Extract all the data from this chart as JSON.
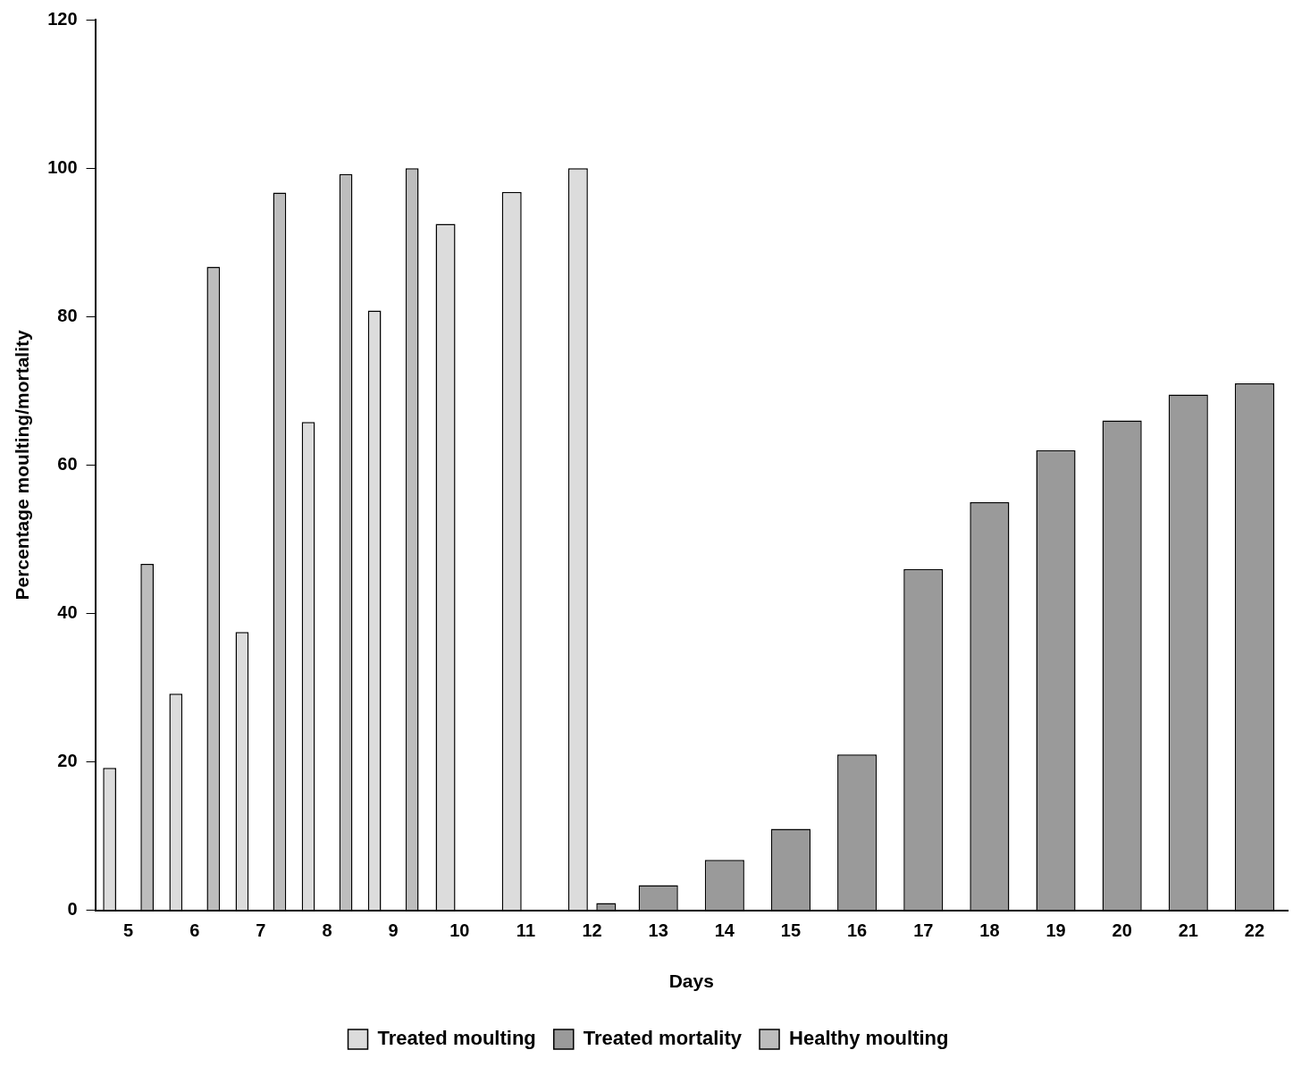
{
  "chart_data": {
    "type": "bar",
    "xlabel": "Days",
    "ylabel": "Percentage moulting/mortality",
    "categories": [
      "5",
      "6",
      "7",
      "8",
      "9",
      "10",
      "11",
      "12",
      "13",
      "14",
      "15",
      "16",
      "17",
      "18",
      "19",
      "20",
      "21",
      "22"
    ],
    "series": [
      {
        "name": "Treated moulting",
        "color": "#dcdcdc",
        "values": [
          19.2,
          29.2,
          37.5,
          65.8,
          80.8,
          92.5,
          96.8,
          100,
          null,
          null,
          null,
          null,
          null,
          null,
          null,
          null,
          null,
          null
        ]
      },
      {
        "name": "Treated mortality",
        "color": "#9a9a9a",
        "values": [
          0,
          0,
          0,
          0,
          0,
          0,
          0,
          1,
          3.4,
          6.8,
          11,
          21,
          46,
          55,
          62,
          66,
          69.5,
          71
        ]
      },
      {
        "name": "Healthy moulting",
        "color": "#bdbdbd",
        "values": [
          46.7,
          86.7,
          96.7,
          99.2,
          100,
          null,
          null,
          null,
          null,
          null,
          null,
          null,
          null,
          null,
          null,
          null,
          null,
          null
        ]
      }
    ],
    "ylim": [
      0,
      120
    ],
    "yticks": [
      0,
      20,
      40,
      60,
      80,
      100,
      120
    ],
    "grid": false,
    "legend": "bottom"
  }
}
